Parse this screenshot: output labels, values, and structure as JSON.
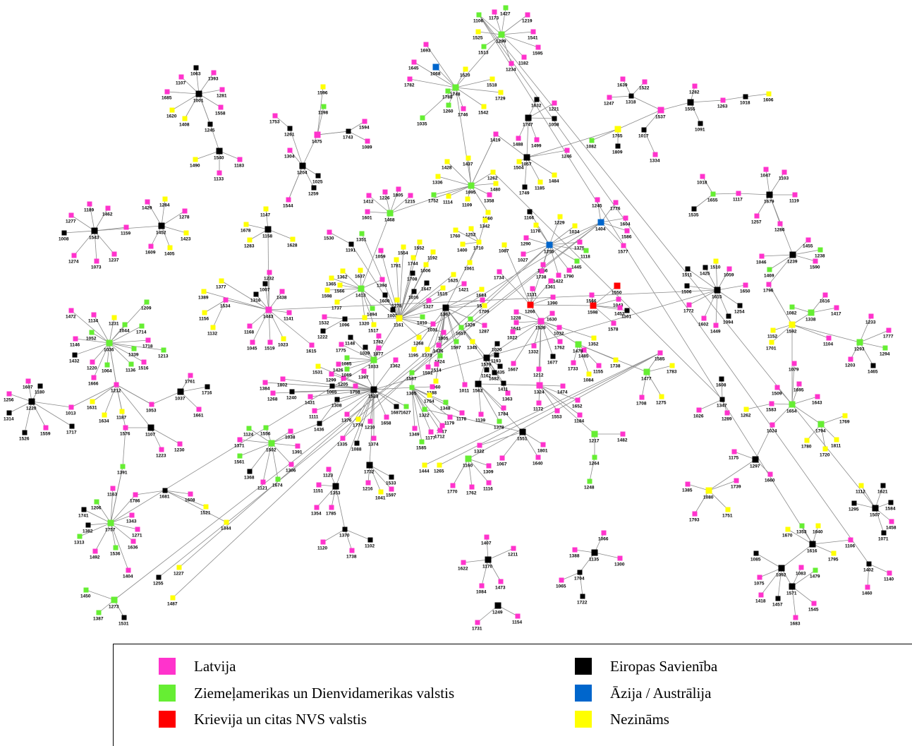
{
  "legend": {
    "latvia": {
      "label": "Latvija",
      "color": "#ff33cc"
    },
    "americas": {
      "label": "Ziemeļamerikas un Dienvidamerikas valstis",
      "color": "#66ee33"
    },
    "russia_cis": {
      "label": "Krievija un citas NVS valstis",
      "color": "#ff0000"
    },
    "eu": {
      "label": "Eiropas Savienība",
      "color": "#000000"
    },
    "asia_australia": {
      "label": "Āzija / Austrālija",
      "color": "#0066cc"
    },
    "unknown": {
      "label": "Nezināms",
      "color": "#ffff00"
    }
  },
  "hubs": [
    {
      "id": "1001",
      "cat": "eu"
    },
    {
      "id": "1543",
      "cat": "eu"
    },
    {
      "id": "1452",
      "cat": "eu"
    },
    {
      "id": "1036",
      "cat": "americas"
    },
    {
      "id": "1220",
      "cat": "eu"
    },
    {
      "id": "1757",
      "cat": "americas"
    },
    {
      "id": "1273",
      "cat": "americas"
    },
    {
      "id": "1502",
      "cat": "americas"
    },
    {
      "id": "1443",
      "cat": "latvia"
    },
    {
      "id": "1158",
      "cat": "eu"
    },
    {
      "id": "1204",
      "cat": "eu"
    },
    {
      "id": "1475",
      "cat": "latvia"
    },
    {
      "id": "1540",
      "cat": "eu"
    },
    {
      "id": "1523",
      "cat": "eu"
    },
    {
      "id": "1033",
      "cat": "americas"
    },
    {
      "id": "1161",
      "cat": "unknown"
    },
    {
      "id": "1413",
      "cat": "americas"
    },
    {
      "id": "1468",
      "cat": "americas"
    },
    {
      "id": "1095",
      "cat": "americas"
    },
    {
      "id": "1748",
      "cat": "americas"
    },
    {
      "id": "1299",
      "cat": "americas"
    },
    {
      "id": "1068",
      "cat": "asia_australia"
    },
    {
      "id": "1255",
      "cat": "asia_australia"
    },
    {
      "id": "1404",
      "cat": "asia_australia"
    },
    {
      "id": "1266",
      "cat": "russia_cis"
    },
    {
      "id": "1598",
      "cat": "russia_cis"
    },
    {
      "id": "1550",
      "cat": "russia_cis"
    },
    {
      "id": "1539",
      "cat": "latvia"
    },
    {
      "id": "1579",
      "cat": "eu"
    },
    {
      "id": "1562",
      "cat": "eu"
    },
    {
      "id": "1367",
      "cat": "eu"
    },
    {
      "id": "1057",
      "cat": "eu"
    },
    {
      "id": "1747",
      "cat": "eu"
    },
    {
      "id": "1765",
      "cat": "unknown"
    },
    {
      "id": "1537",
      "cat": "latvia"
    },
    {
      "id": "1555",
      "cat": "eu"
    },
    {
      "id": "1615",
      "cat": "eu"
    },
    {
      "id": "1679",
      "cat": "eu"
    },
    {
      "id": "1239",
      "cat": "eu"
    },
    {
      "id": "1338",
      "cat": "americas"
    },
    {
      "id": "1592",
      "cat": "unknown"
    },
    {
      "id": "1293",
      "cat": "americas"
    },
    {
      "id": "1654",
      "cat": "americas"
    },
    {
      "id": "1794",
      "cat": "americas"
    },
    {
      "id": "1297",
      "cat": "eu"
    },
    {
      "id": "1080",
      "cat": "unknown"
    },
    {
      "id": "1616",
      "cat": "eu"
    },
    {
      "id": "1092",
      "cat": "eu"
    },
    {
      "id": "1571",
      "cat": "eu"
    },
    {
      "id": "1507",
      "cat": "eu"
    },
    {
      "id": "1135",
      "cat": "eu"
    },
    {
      "id": "1170",
      "cat": "eu"
    },
    {
      "id": "1249",
      "cat": "eu"
    },
    {
      "id": "1353",
      "cat": "eu"
    },
    {
      "id": "1732",
      "cat": "eu"
    },
    {
      "id": "1551",
      "cat": "eu"
    },
    {
      "id": "1160",
      "cat": "americas"
    },
    {
      "id": "1478",
      "cat": "americas"
    },
    {
      "id": "1477",
      "cat": "americas"
    },
    {
      "id": "1217",
      "cat": "americas"
    },
    {
      "id": "1324",
      "cat": "latvia"
    },
    {
      "id": "1107",
      "cat": "eu"
    },
    {
      "id": "1037",
      "cat": "eu"
    }
  ]
}
